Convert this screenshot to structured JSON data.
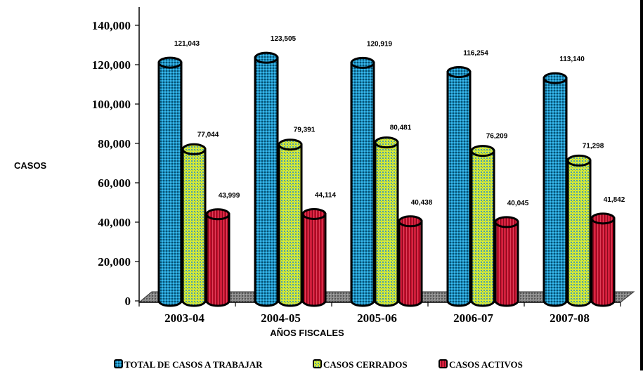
{
  "chart_data": {
    "type": "bar",
    "title": "",
    "xlabel": "AÑOS FISCALES",
    "ylabel": "CASOS",
    "ylim": [
      0,
      140000
    ],
    "yticks": [
      "0",
      "20,000",
      "40,000",
      "60,000",
      "80,000",
      "100,000",
      "120,000",
      "140,000"
    ],
    "yticks_values": [
      0,
      20000,
      40000,
      60000,
      80000,
      100000,
      120000,
      140000
    ],
    "categories": [
      "2003-04",
      "2004-05",
      "2005-06",
      "2006-07",
      "2007-08"
    ],
    "series": [
      {
        "name": "TOTAL DE CASOS A TRABAJAR",
        "color": "#1a8fc0",
        "values": [
          121043,
          123505,
          120919,
          116254,
          113140
        ],
        "labels": [
          "121,043",
          "123,505",
          "120,919",
          "116,254",
          "113,140"
        ]
      },
      {
        "name": "CASOS CERRADOS",
        "color": "#c8e02a",
        "values": [
          77044,
          79391,
          80481,
          76209,
          71298
        ],
        "labels": [
          "77,044",
          "79,391",
          "80,481",
          "76,209",
          "71,298"
        ]
      },
      {
        "name": "CASOS ACTIVOS",
        "color": "#c8102e",
        "values": [
          43999,
          44114,
          40438,
          40045,
          41842
        ],
        "labels": [
          "43,999",
          "44,114",
          "40,438",
          "40,045",
          "41,842"
        ]
      }
    ],
    "legend_position": "bottom",
    "grid": false
  }
}
